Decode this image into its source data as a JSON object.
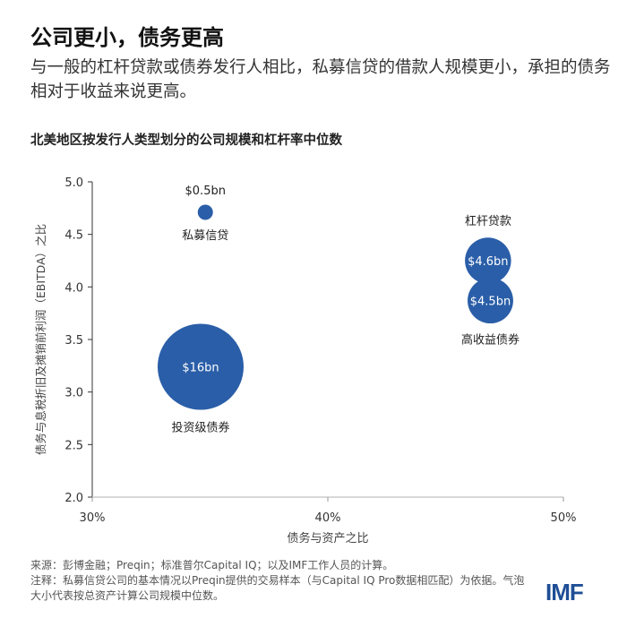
{
  "header": {
    "title": "公司更小，债务更高",
    "subtitle": "与一般的杠杆贷款或债券发行人相比，私募信贷的借款人规模更小，承担的债务相对于收益来说更高。"
  },
  "chart_data": {
    "type": "scatter",
    "title": "北美地区按发行人类型划分的公司规模和杠杆率中位数",
    "xlabel": "债务与资产之比",
    "ylabel": "债务与息税折旧及摊销前利润（EBITDA）之比",
    "xlim": [
      30,
      50
    ],
    "ylim": [
      2.0,
      5.0
    ],
    "xticks": [
      "30%",
      "40%",
      "50%"
    ],
    "xtick_values": [
      30,
      40,
      50
    ],
    "yticks": [
      "2.0",
      "2.5",
      "3.0",
      "3.5",
      "4.0",
      "4.5",
      "5.0"
    ],
    "ytick_values": [
      2.0,
      2.5,
      3.0,
      3.5,
      4.0,
      4.5,
      5.0
    ],
    "grid": false,
    "bubble_color": "#2a5ea8",
    "points": [
      {
        "name": "私募信贷",
        "x": 34.8,
        "y": 4.71,
        "size_bn": 0.5,
        "size_label": "$0.5bn",
        "label_inside": false
      },
      {
        "name": "投资级债券",
        "x": 34.6,
        "y": 3.24,
        "size_bn": 16,
        "size_label": "$16bn",
        "label_inside": true
      },
      {
        "name": "杠杆贷款",
        "x": 46.8,
        "y": 4.25,
        "size_bn": 4.6,
        "size_label": "$4.6bn",
        "label_inside": true
      },
      {
        "name": "高收益债券",
        "x": 46.9,
        "y": 3.87,
        "size_bn": 4.5,
        "size_label": "$4.5bn",
        "label_inside": true
      }
    ]
  },
  "footer": {
    "source": "来源：彭博金融；Preqin；标准普尔Capital IQ；以及IMF工作人员的计算。",
    "note": "注释：私募信贷公司的基本情况以Preqin提供的交易样本（与Capital IQ Pro数据相匹配）为依据。气泡大小代表按总资产计算公司规模中位数。",
    "logo": "IMF"
  }
}
